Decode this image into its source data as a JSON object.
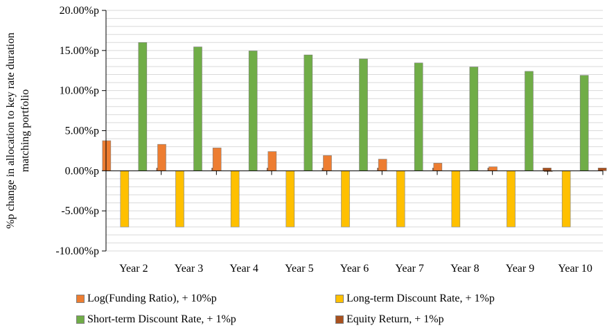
{
  "chart_data": {
    "type": "bar",
    "ylabel_lines": [
      "%p change in allocation to key rate duration",
      "matching portfolio"
    ],
    "xlabel": "",
    "categories": [
      "Year 2",
      "Year 3",
      "Year 4",
      "Year 5",
      "Year 6",
      "Year 7",
      "Year 8",
      "Year 9",
      "Year 10"
    ],
    "yticks": [
      "20.00%p",
      "15.00%p",
      "10.00%p",
      "5.00%p",
      "0.00%p",
      "-5.00%p",
      "-10.00%p"
    ],
    "ylim": [
      -10,
      20
    ],
    "grid": true,
    "legend_position": "bottom",
    "series": [
      {
        "name": "Log(Funding Ratio), + 10%p",
        "color": "#ed7d31",
        "values": [
          3.75,
          3.3,
          2.85,
          2.4,
          1.9,
          1.45,
          0.95,
          0.5,
          -0.1
        ]
      },
      {
        "name": "Long-term Discount Rate, + 1%p",
        "color": "#ffc000",
        "values": [
          -7.0,
          -7.0,
          -7.0,
          -7.0,
          -7.0,
          -7.0,
          -7.0,
          -7.0,
          -7.0
        ]
      },
      {
        "name": "Short-term Discount Rate, + 1%p",
        "color": "#70ad47",
        "values": [
          16.0,
          15.45,
          14.95,
          14.45,
          13.95,
          13.45,
          12.95,
          12.4,
          11.9
        ]
      },
      {
        "name": "Equity Return, + 1%p",
        "color": "#a9511e",
        "values": [
          0.35,
          0.35,
          0.35,
          0.35,
          0.35,
          0.35,
          0.35,
          0.35,
          0.35
        ]
      }
    ]
  }
}
